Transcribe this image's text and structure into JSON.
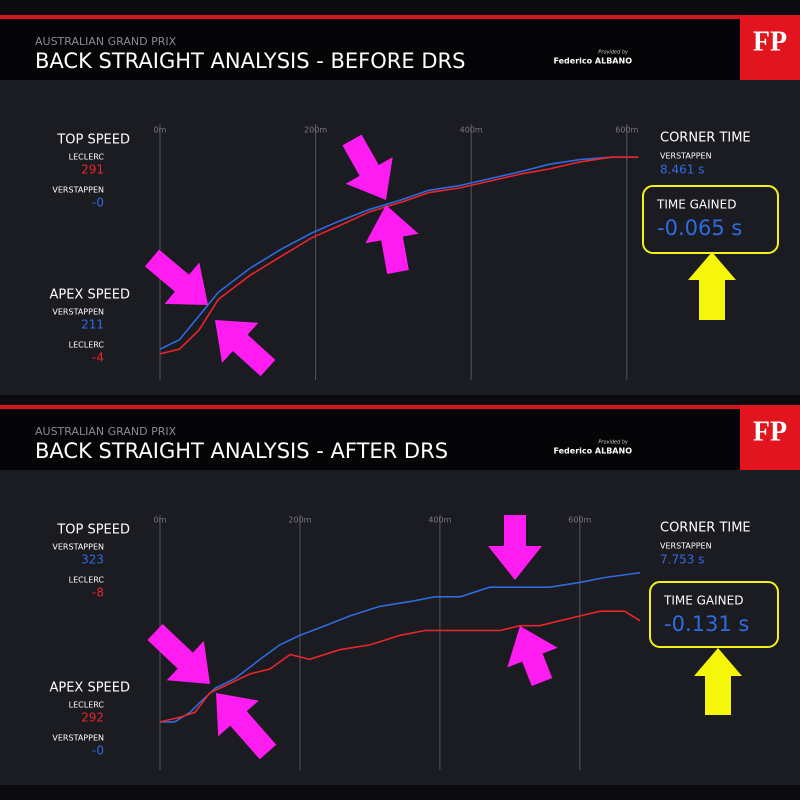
{
  "chart_data": [
    {
      "type": "line",
      "subtitle": "AUSTRALIAN GRAND PRIX",
      "title": "BACK STRAIGHT ANALYSIS - BEFORE DRS",
      "provided_by": "Provided by",
      "author": "Federico ALBANO",
      "logo": "FP",
      "top_speed": {
        "label": "TOP SPEED",
        "entries": [
          {
            "driver": "LECLERC",
            "value": "291",
            "color": "#e8262b"
          },
          {
            "driver": "VERSTAPPEN",
            "value": "-0",
            "color": "#2f6be0"
          }
        ]
      },
      "apex_speed": {
        "label": "APEX SPEED",
        "entries": [
          {
            "driver": "VERSTAPPEN",
            "value": "211",
            "color": "#2f6be0"
          },
          {
            "driver": "LECLERC",
            "value": "-4",
            "color": "#e8262b"
          }
        ]
      },
      "corner_time": {
        "label": "CORNER TIME",
        "driver": "VERSTAPPEN",
        "value": "8.461 s"
      },
      "time_gained": {
        "label": "TIME GAINED",
        "value": "-0.065 s"
      },
      "xlim": [
        0,
        617
      ],
      "ylim": [
        197,
        305
      ],
      "xticks": [
        {
          "value": 0,
          "label": "0m"
        },
        {
          "value": 200,
          "label": "200m"
        },
        {
          "value": 400,
          "label": "400m"
        },
        {
          "value": 600,
          "label": "600m"
        }
      ],
      "series": [
        {
          "color": "#2f6be0",
          "x": [
            0,
            25,
            50,
            75,
            115,
            155,
            195,
            230,
            270,
            310,
            345,
            385,
            425,
            465,
            500,
            540,
            580,
            615
          ],
          "values": [
            210,
            214,
            224,
            234,
            244,
            252,
            259,
            264,
            269,
            273,
            277,
            279,
            282,
            285,
            288,
            290,
            291,
            291
          ]
        },
        {
          "color": "#e8262b",
          "x": [
            0,
            25,
            50,
            75,
            115,
            155,
            195,
            230,
            270,
            310,
            345,
            385,
            425,
            465,
            500,
            540,
            580,
            615
          ],
          "values": [
            208,
            210,
            218,
            231,
            241,
            249,
            257,
            262,
            268,
            272,
            276,
            278,
            281,
            284,
            286,
            289,
            291,
            291
          ]
        }
      ]
    },
    {
      "type": "line",
      "subtitle": "AUSTRALIAN GRAND PRIX",
      "title": "BACK STRAIGHT ANALYSIS - AFTER DRS",
      "provided_by": "Provided by",
      "author": "Federico ALBANO",
      "logo": "FP",
      "top_speed": {
        "label": "TOP SPEED",
        "entries": [
          {
            "driver": "VERSTAPPEN",
            "value": "323",
            "color": "#2f6be0"
          },
          {
            "driver": "LECLERC",
            "value": "-8",
            "color": "#e8262b"
          }
        ]
      },
      "apex_speed": {
        "label": "APEX SPEED",
        "entries": [
          {
            "driver": "LECLERC",
            "value": "292",
            "color": "#e8262b"
          },
          {
            "driver": "VERSTAPPEN",
            "value": "-0",
            "color": "#2f6be0"
          }
        ]
      },
      "corner_time": {
        "label": "CORNER TIME",
        "driver": "VERSTAPPEN",
        "value": "7.753 s"
      },
      "time_gained": {
        "label": "TIME GAINED",
        "value": "-0.131 s"
      },
      "xlim": [
        0,
        686
      ],
      "ylim": [
        282,
        335
      ],
      "xticks": [
        {
          "value": 0,
          "label": "0m"
        },
        {
          "value": 200,
          "label": "200m"
        },
        {
          "value": 400,
          "label": "400m"
        },
        {
          "value": 600,
          "label": "600m"
        }
      ],
      "series": [
        {
          "color": "#2f6be0",
          "x": [
            0,
            21,
            43,
            57,
            79,
            107,
            143,
            171,
            200,
            236,
            271,
            314,
            357,
            393,
            429,
            471,
            493,
            557,
            600,
            636,
            686
          ],
          "values": [
            292,
            292,
            294,
            296,
            299,
            301,
            305,
            308,
            310,
            312,
            314,
            316,
            317,
            318,
            318,
            320,
            320,
            320,
            321,
            322,
            323
          ]
        },
        {
          "color": "#e8262b",
          "x": [
            0,
            29,
            50,
            71,
            100,
            129,
            157,
            186,
            214,
            257,
            300,
            343,
            379,
            400,
            443,
            486,
            514,
            543,
            571,
            600,
            629,
            664,
            686
          ],
          "values": [
            292,
            293,
            294,
            298,
            300,
            302,
            303,
            306,
            305,
            307,
            308,
            310,
            311,
            311,
            311,
            311,
            312,
            312,
            313,
            314,
            315,
            315,
            313
          ]
        }
      ]
    }
  ]
}
